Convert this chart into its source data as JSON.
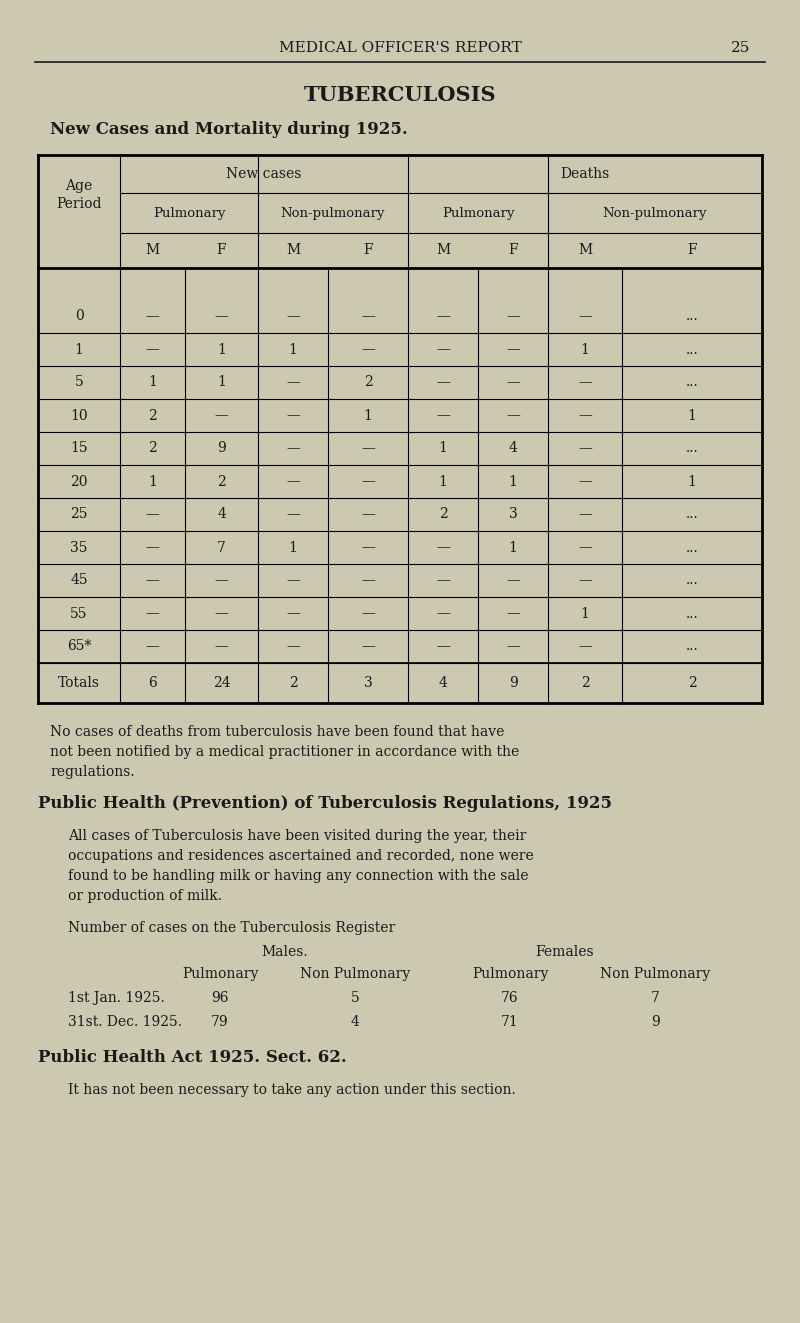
{
  "bg_color": "#cdc9b0",
  "text_color": "#1a1a1a",
  "page_header": "MEDICAL OFFICER'S REPORT",
  "page_number": "25",
  "title": "TUBERCULOSIS",
  "subtitle": "New Cases and Mortality during 1925.",
  "age_periods": [
    "0",
    "1",
    "5",
    "10",
    "15",
    "20",
    "25",
    "35",
    "45",
    "55",
    "65*"
  ],
  "table_data": [
    [
      "—",
      "—",
      "—",
      "—",
      "—",
      "—",
      "—",
      "..."
    ],
    [
      "—",
      "1",
      "1",
      "—",
      "—",
      "—",
      "1",
      "..."
    ],
    [
      "1",
      "1",
      "—",
      "2",
      "—",
      "—",
      "—",
      "..."
    ],
    [
      "2",
      "—",
      "—",
      "1",
      "—",
      "—",
      "—",
      "1"
    ],
    [
      "2",
      "9",
      "—",
      "—",
      "1",
      "4",
      "—",
      "..."
    ],
    [
      "1",
      "2",
      "—",
      "—",
      "1",
      "1",
      "—",
      "1"
    ],
    [
      "—",
      "4",
      "—",
      "—",
      "2",
      "3",
      "—",
      "..."
    ],
    [
      "—",
      "7",
      "1",
      "—",
      "—",
      "1",
      "—",
      "..."
    ],
    [
      "—",
      "—",
      "—",
      "—",
      "—",
      "—",
      "—",
      "..."
    ],
    [
      "—",
      "—",
      "—",
      "—",
      "—",
      "—",
      "1",
      "..."
    ],
    [
      "—",
      "—",
      "—",
      "—",
      "—",
      "—",
      "—",
      "..."
    ]
  ],
  "totals": [
    "6",
    "24",
    "2",
    "3",
    "4",
    "9",
    "2",
    "2"
  ],
  "para1_lines": [
    "No cases of deaths from tuberculosis have been found that have",
    "not been notified by a medical practitioner in accordance with the",
    "regulations."
  ],
  "section2_title": "Public Health (Prevention) of Tuberculosis Regulations, 1925",
  "para2_lines": [
    "All cases of Tuberculosis have been visited during the year, their",
    "occupations and residences ascertained and recorded, none were",
    "found to be handling milk or having any connection with the sale",
    "or production of milk."
  ],
  "register_header": "Number of cases on the Tuberculosis Register",
  "section3_title": "Public Health Act 1925. Sect. 62.",
  "para3": "It has not been necessary to take any action under this section."
}
